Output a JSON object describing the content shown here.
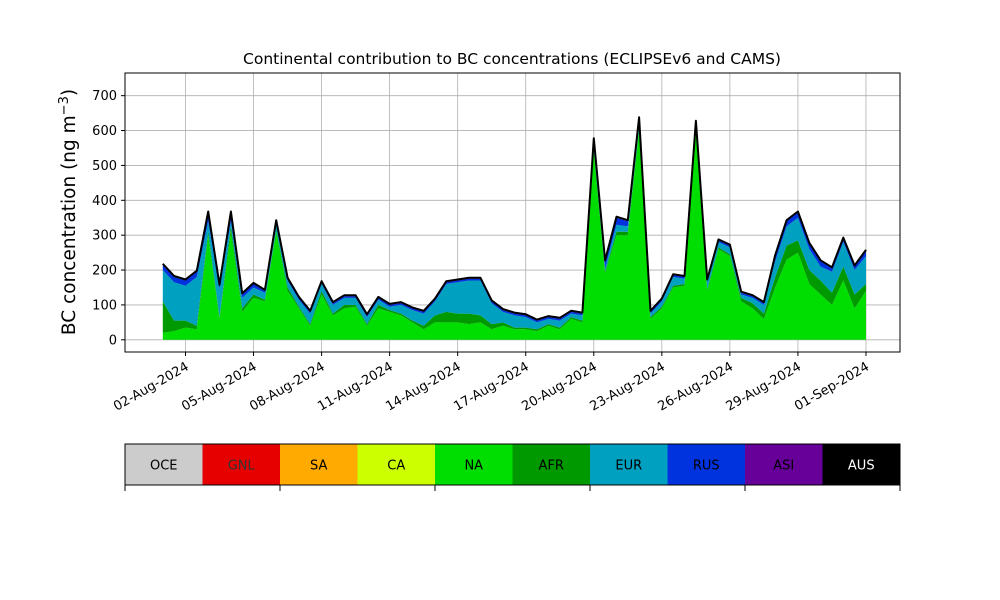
{
  "chart_data": {
    "type": "area",
    "stacked": true,
    "title": "Continental contribution to BC concentrations (ECLIPSEv6 and CAMS)",
    "xlabel": "",
    "ylabel": "BC concentration (ng m",
    "ylabel_unit_exponent": "−3",
    "ylabel_close": ")",
    "ylim": [
      -35,
      765
    ],
    "yticks": [
      0,
      100,
      200,
      300,
      400,
      500,
      600,
      700
    ],
    "xlim": [
      "2024-07-30T08:00",
      "2024-09-02T12:00"
    ],
    "xticks": [
      "2024-08-02",
      "2024-08-05",
      "2024-08-08",
      "2024-08-11",
      "2024-08-14",
      "2024-08-17",
      "2024-08-20",
      "2024-08-23",
      "2024-08-26",
      "2024-08-29",
      "2024-09-01"
    ],
    "xtick_labels": [
      "02-Aug-2024",
      "05-Aug-2024",
      "08-Aug-2024",
      "11-Aug-2024",
      "14-Aug-2024",
      "17-Aug-2024",
      "20-Aug-2024",
      "23-Aug-2024",
      "26-Aug-2024",
      "29-Aug-2024",
      "01-Sep-2024"
    ],
    "grid": true,
    "legend_position": "below",
    "legend": [
      {
        "name": "OCE",
        "color": "#cccccc",
        "text_color": "#000000"
      },
      {
        "name": "GNL",
        "color": "#e60000",
        "text_color": "#333333"
      },
      {
        "name": "SA",
        "color": "#ffaa00",
        "text_color": "#000000"
      },
      {
        "name": "CA",
        "color": "#ccff00",
        "text_color": "#000000"
      },
      {
        "name": "NA",
        "color": "#00dd00",
        "text_color": "#000000"
      },
      {
        "name": "AFR",
        "color": "#009900",
        "text_color": "#000000"
      },
      {
        "name": "EUR",
        "color": "#00a0c0",
        "text_color": "#000000"
      },
      {
        "name": "RUS",
        "color": "#0033dd",
        "text_color": "#000000"
      },
      {
        "name": "ASI",
        "color": "#660099",
        "text_color": "#000000"
      },
      {
        "name": "AUS",
        "color": "#000000",
        "text_color": "#ffffff"
      }
    ],
    "x": [
      "2024-08-01T00:00",
      "2024-08-01T12:00",
      "2024-08-02T00:00",
      "2024-08-02T12:00",
      "2024-08-03T00:00",
      "2024-08-03T12:00",
      "2024-08-04T00:00",
      "2024-08-04T12:00",
      "2024-08-05T00:00",
      "2024-08-05T12:00",
      "2024-08-06T00:00",
      "2024-08-06T12:00",
      "2024-08-07T00:00",
      "2024-08-07T12:00",
      "2024-08-08T00:00",
      "2024-08-08T12:00",
      "2024-08-09T00:00",
      "2024-08-09T12:00",
      "2024-08-10T00:00",
      "2024-08-10T12:00",
      "2024-08-11T00:00",
      "2024-08-11T12:00",
      "2024-08-12T00:00",
      "2024-08-12T12:00",
      "2024-08-13T00:00",
      "2024-08-13T12:00",
      "2024-08-14T00:00",
      "2024-08-14T12:00",
      "2024-08-15T00:00",
      "2024-08-15T12:00",
      "2024-08-16T00:00",
      "2024-08-16T12:00",
      "2024-08-17T00:00",
      "2024-08-17T12:00",
      "2024-08-18T00:00",
      "2024-08-18T12:00",
      "2024-08-19T00:00",
      "2024-08-19T12:00",
      "2024-08-20T00:00",
      "2024-08-20T12:00",
      "2024-08-21T00:00",
      "2024-08-21T12:00",
      "2024-08-22T00:00",
      "2024-08-22T12:00",
      "2024-08-23T00:00",
      "2024-08-23T12:00",
      "2024-08-24T00:00",
      "2024-08-24T12:00",
      "2024-08-25T00:00",
      "2024-08-25T12:00",
      "2024-08-26T00:00",
      "2024-08-26T12:00",
      "2024-08-27T00:00",
      "2024-08-27T12:00",
      "2024-08-28T00:00",
      "2024-08-28T12:00",
      "2024-08-29T00:00",
      "2024-08-29T12:00",
      "2024-08-30T00:00",
      "2024-08-30T12:00",
      "2024-08-31T00:00",
      "2024-08-31T12:00",
      "2024-09-01T00:00"
    ],
    "series": [
      {
        "name": "OCE",
        "values": [
          0,
          0,
          0,
          0,
          0,
          0,
          0,
          0,
          0,
          0,
          0,
          0,
          0,
          0,
          0,
          0,
          0,
          0,
          0,
          0,
          0,
          0,
          0,
          0,
          0,
          0,
          0,
          0,
          0,
          0,
          0,
          0,
          0,
          0,
          0,
          0,
          0,
          0,
          0,
          0,
          0,
          0,
          0,
          0,
          0,
          0,
          0,
          0,
          0,
          0,
          0,
          0,
          0,
          0,
          0,
          0,
          0,
          0,
          0,
          0,
          0,
          0,
          0
        ]
      },
      {
        "name": "GNL",
        "values": [
          0,
          0,
          0,
          0,
          0,
          0,
          0,
          0,
          0,
          0,
          0,
          0,
          0,
          0,
          0,
          0,
          0,
          0,
          0,
          0,
          0,
          0,
          0,
          0,
          0,
          0,
          0,
          0,
          0,
          0,
          0,
          0,
          0,
          0,
          0,
          0,
          0,
          0,
          0,
          0,
          0,
          0,
          0,
          0,
          0,
          0,
          0,
          0,
          0,
          0,
          0,
          0,
          0,
          0,
          0,
          0,
          0,
          0,
          0,
          0,
          0,
          0,
          0
        ]
      },
      {
        "name": "SA",
        "values": [
          0,
          0,
          0,
          0,
          0,
          0,
          0,
          0,
          0,
          0,
          0,
          0,
          0,
          0,
          0,
          0,
          0,
          0,
          0,
          0,
          0,
          0,
          0,
          0,
          0,
          0,
          0,
          0,
          0,
          0,
          0,
          0,
          0,
          0,
          0,
          0,
          0,
          0,
          0,
          0,
          0,
          0,
          0,
          0,
          0,
          0,
          0,
          0,
          0,
          0,
          0,
          0,
          0,
          0,
          0,
          0,
          0,
          0,
          0,
          0,
          0,
          0,
          0
        ]
      },
      {
        "name": "CA",
        "values": [
          0,
          0,
          0,
          0,
          0,
          0,
          0,
          0,
          0,
          0,
          0,
          0,
          0,
          0,
          0,
          0,
          0,
          0,
          0,
          0,
          0,
          0,
          0,
          0,
          0,
          0,
          0,
          0,
          0,
          0,
          0,
          0,
          0,
          0,
          0,
          0,
          0,
          0,
          0,
          0,
          0,
          0,
          0,
          0,
          0,
          0,
          0,
          0,
          0,
          0,
          0,
          0,
          0,
          0,
          0,
          0,
          0,
          0,
          0,
          0,
          0,
          0,
          0
        ]
      },
      {
        "name": "NA",
        "values": [
          20,
          25,
          35,
          30,
          300,
          60,
          310,
          80,
          120,
          110,
          310,
          140,
          90,
          40,
          130,
          70,
          90,
          95,
          40,
          90,
          80,
          70,
          50,
          30,
          50,
          50,
          50,
          45,
          50,
          30,
          40,
          30,
          30,
          25,
          40,
          30,
          60,
          50,
          540,
          190,
          300,
          300,
          600,
          60,
          90,
          150,
          155,
          600,
          140,
          260,
          240,
          110,
          90,
          60,
          150,
          230,
          250,
          160,
          130,
          100,
          170,
          90,
          140
        ]
      },
      {
        "name": "AFR",
        "values": [
          90,
          30,
          20,
          10,
          10,
          5,
          15,
          10,
          10,
          5,
          5,
          10,
          5,
          5,
          10,
          5,
          10,
          5,
          5,
          10,
          5,
          5,
          5,
          10,
          20,
          30,
          25,
          30,
          20,
          15,
          10,
          5,
          5,
          5,
          5,
          5,
          5,
          5,
          5,
          5,
          10,
          10,
          5,
          5,
          5,
          5,
          5,
          5,
          5,
          5,
          5,
          10,
          15,
          15,
          30,
          40,
          35,
          40,
          40,
          35,
          40,
          40,
          20
        ]
      },
      {
        "name": "EUR",
        "values": [
          90,
          110,
          100,
          140,
          30,
          80,
          15,
          30,
          20,
          20,
          20,
          20,
          20,
          30,
          20,
          25,
          20,
          20,
          20,
          15,
          10,
          25,
          30,
          35,
          40,
          80,
          90,
          95,
          100,
          60,
          30,
          35,
          30,
          20,
          15,
          20,
          10,
          15,
          15,
          10,
          20,
          15,
          15,
          10,
          15,
          25,
          15,
          15,
          20,
          15,
          20,
          10,
          15,
          25,
          45,
          55,
          65,
          60,
          40,
          60,
          70,
          70,
          80
        ]
      },
      {
        "name": "RUS",
        "values": [
          15,
          15,
          15,
          15,
          25,
          10,
          25,
          10,
          10,
          5,
          5,
          5,
          5,
          5,
          5,
          5,
          5,
          5,
          5,
          5,
          5,
          5,
          5,
          5,
          5,
          5,
          5,
          5,
          5,
          5,
          5,
          5,
          5,
          5,
          5,
          5,
          5,
          5,
          15,
          20,
          20,
          15,
          15,
          5,
          5,
          5,
          5,
          5,
          5,
          5,
          5,
          5,
          5,
          5,
          15,
          15,
          15,
          15,
          15,
          10,
          10,
          10,
          15
        ]
      },
      {
        "name": "ASI",
        "values": [
          3,
          3,
          3,
          3,
          3,
          3,
          3,
          3,
          3,
          3,
          3,
          3,
          3,
          3,
          3,
          3,
          3,
          3,
          3,
          3,
          3,
          3,
          3,
          3,
          3,
          3,
          3,
          3,
          3,
          3,
          3,
          3,
          3,
          3,
          3,
          3,
          3,
          3,
          3,
          3,
          3,
          3,
          3,
          3,
          3,
          3,
          3,
          3,
          3,
          3,
          3,
          3,
          3,
          3,
          3,
          3,
          3,
          3,
          3,
          3,
          3,
          3,
          3
        ]
      },
      {
        "name": "AUS",
        "values": [
          0,
          0,
          0,
          0,
          0,
          0,
          0,
          0,
          0,
          0,
          0,
          0,
          0,
          0,
          0,
          0,
          0,
          0,
          0,
          0,
          0,
          0,
          0,
          0,
          0,
          0,
          0,
          0,
          0,
          0,
          0,
          0,
          0,
          0,
          0,
          0,
          0,
          0,
          0,
          0,
          0,
          0,
          0,
          0,
          0,
          0,
          0,
          0,
          0,
          0,
          0,
          0,
          0,
          0,
          0,
          0,
          0,
          0,
          0,
          0,
          0,
          0,
          0
        ]
      }
    ]
  }
}
